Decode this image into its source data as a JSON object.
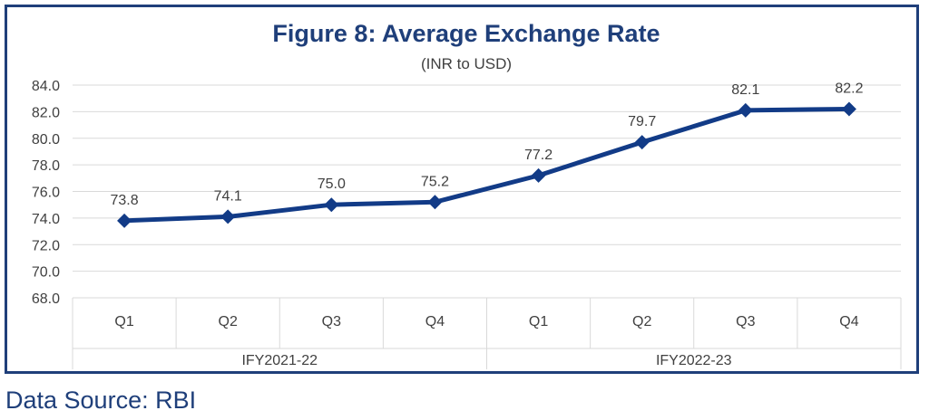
{
  "chart_data": {
    "type": "line",
    "title": "Figure 8: Average Exchange Rate",
    "subtitle": "(INR to USD)",
    "categories": [
      "Q1",
      "Q2",
      "Q3",
      "Q4",
      "Q1",
      "Q2",
      "Q3",
      "Q4"
    ],
    "groups": [
      {
        "label": "IFY2021-22",
        "span": 4
      },
      {
        "label": "IFY2022-23",
        "span": 4
      }
    ],
    "series": [
      {
        "values": [
          73.8,
          74.1,
          75.0,
          75.2,
          77.2,
          79.7,
          82.1,
          82.2
        ],
        "labels": [
          "73.8",
          "74.1",
          "75.0",
          "75.2",
          "77.2",
          "79.7",
          "82.1",
          "82.2"
        ]
      }
    ],
    "ylim": [
      68.0,
      84.0
    ],
    "yticks": [
      "68.0",
      "70.0",
      "72.0",
      "74.0",
      "76.0",
      "78.0",
      "80.0",
      "82.0",
      "84.0"
    ],
    "grid": true,
    "colors": {
      "line": "#123b87",
      "title": "#1f3f7a",
      "grid": "#d9d9d9",
      "frame": "#1f3f7a",
      "text": "#404040"
    }
  },
  "footer": {
    "source": "Data Source: RBI"
  }
}
